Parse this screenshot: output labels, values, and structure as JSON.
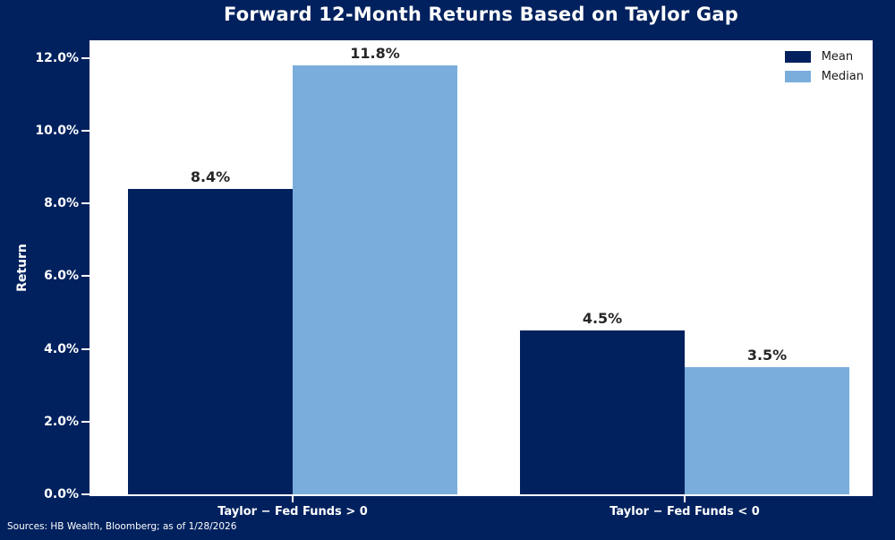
{
  "title": "Forward 12-Month Returns Based on Taylor Gap",
  "source_note": "Sources: HB Wealth, Bloomberg; as of 1/28/2026",
  "colors": {
    "figure_background": "#00215e",
    "plot_background": "#ffffff",
    "axis_text": "#ffffff",
    "bar_label_text": "#262626",
    "legend_text": "#1a1a1a",
    "mean_bar": "#00215e",
    "median_bar": "#7aaddc"
  },
  "chart_data": {
    "type": "bar",
    "title": "Forward 12-Month Returns Based on Taylor Gap",
    "xlabel": "",
    "ylabel": "Return",
    "categories": [
      "Taylor − Fed Funds > 0",
      "Taylor − Fed Funds < 0"
    ],
    "series": [
      {
        "name": "Mean",
        "color": "#00215e",
        "values": [
          8.4,
          4.5
        ],
        "labels": [
          "8.4%",
          "4.5%"
        ]
      },
      {
        "name": "Median",
        "color": "#7aaddc",
        "values": [
          11.8,
          3.5
        ],
        "labels": [
          "11.8%",
          "3.5%"
        ]
      }
    ],
    "ylim": [
      0,
      12.49
    ],
    "yticks": [
      {
        "value": 0,
        "label": "0.0%"
      },
      {
        "value": 2,
        "label": "2.0%"
      },
      {
        "value": 4,
        "label": "4.0%"
      },
      {
        "value": 6,
        "label": "6.0%"
      },
      {
        "value": 8,
        "label": "8.0%"
      },
      {
        "value": 10,
        "label": "10.0%"
      },
      {
        "value": 12,
        "label": "12.0%"
      }
    ],
    "grid": false,
    "legend_position": "upper right",
    "layout": {
      "bar_width_frac": 0.21,
      "group_center_fracs": [
        0.259,
        0.76
      ]
    }
  }
}
